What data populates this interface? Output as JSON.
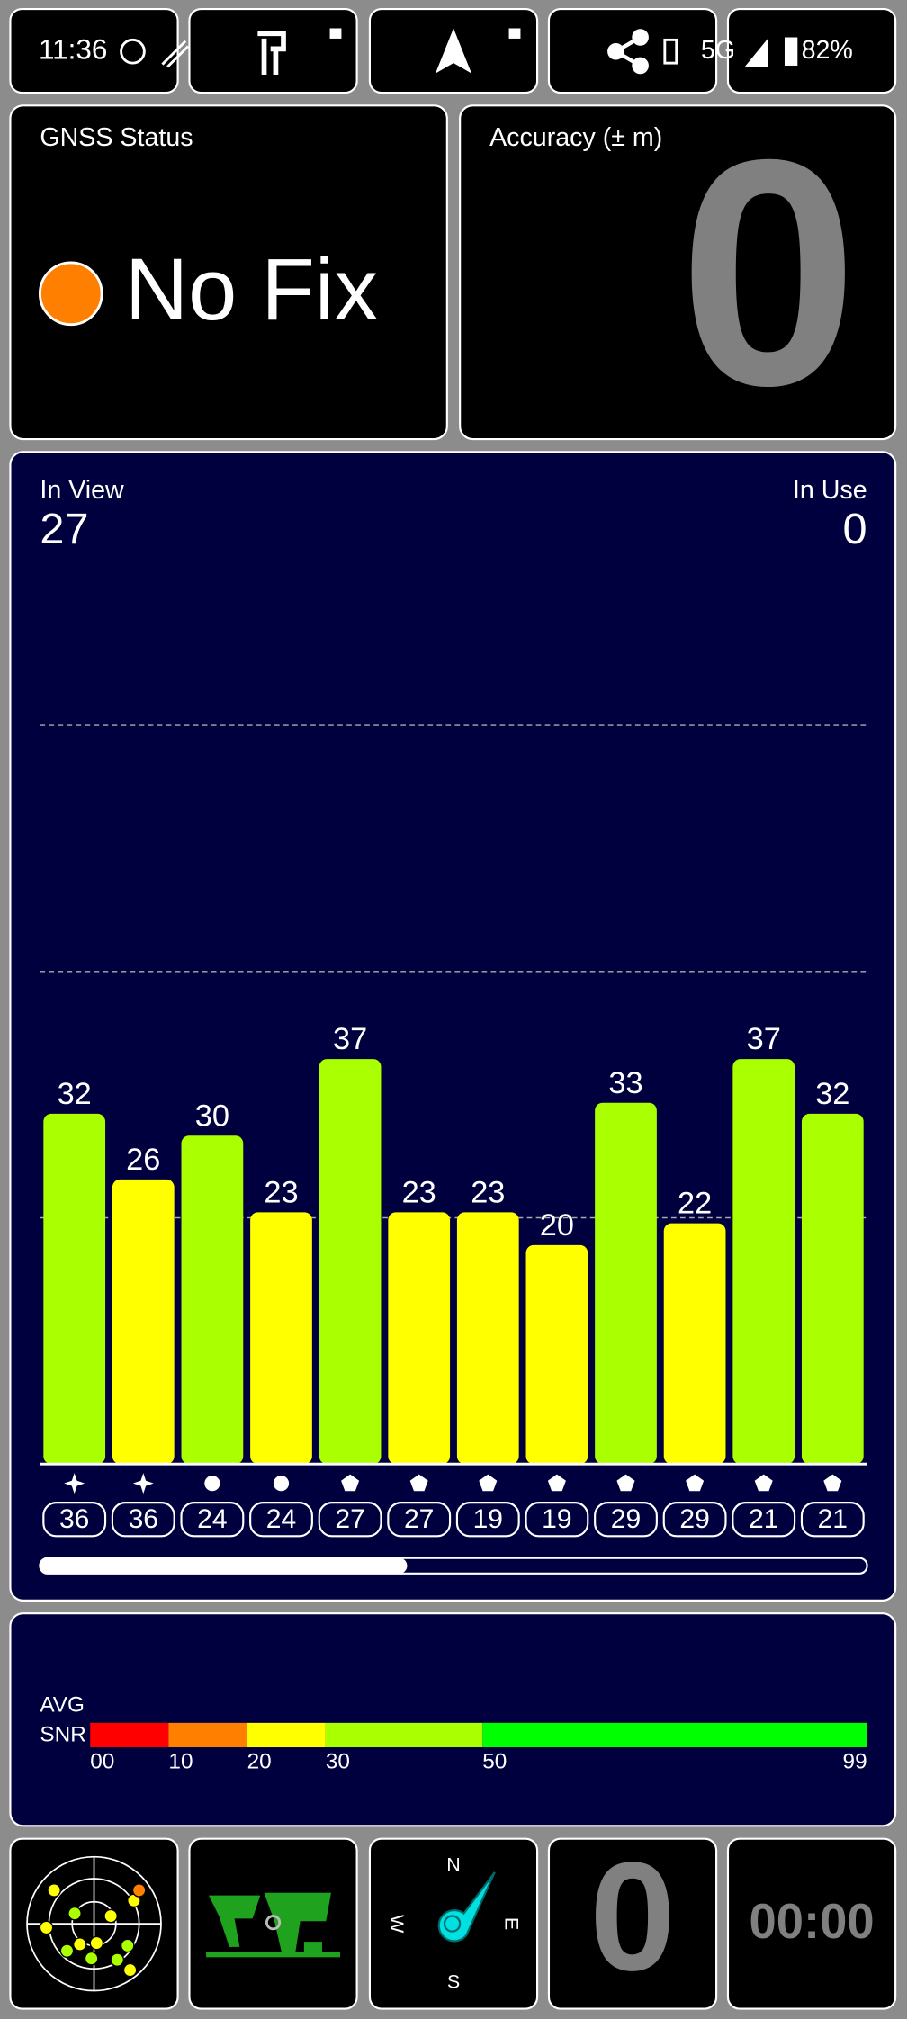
{
  "status_bar": {
    "time": "11:36",
    "network": "5G",
    "battery": "82%"
  },
  "gnss_status": {
    "title": "GNSS Status",
    "fix": "No Fix"
  },
  "accuracy": {
    "title": "Accuracy (± m)",
    "value": 0
  },
  "satellites": {
    "in_view_label": "In View",
    "in_view": 27,
    "in_use_label": "In Use",
    "in_use": 0
  },
  "chart_data": {
    "type": "bar",
    "categories": [
      "36",
      "36",
      "24",
      "24",
      "27",
      "27",
      "19",
      "19",
      "29",
      "29",
      "21",
      "21"
    ],
    "values": [
      32,
      26,
      30,
      23,
      37,
      23,
      23,
      20,
      33,
      22,
      37,
      32
    ],
    "colors": [
      "#aaff00",
      "#ffff00",
      "#aaff00",
      "#ffff00",
      "#aaff00",
      "#ffff00",
      "#ffff00",
      "#ffff00",
      "#aaff00",
      "#ffff00",
      "#aaff00",
      "#aaff00"
    ],
    "ylim": [
      0,
      90
    ],
    "grid_values": [
      22.5,
      45,
      67.5
    ],
    "grid": true
  },
  "snr_legend": {
    "label_top": "AVG",
    "label_bottom": "SNR",
    "xlim": [
      0,
      99
    ],
    "ticks": [
      {
        "value": 0,
        "label": "00"
      },
      10,
      20,
      30,
      50,
      99
    ],
    "colors": [
      "#ff0000",
      "#ff8000",
      "#ffff00",
      "#aaff00",
      "#00ff00"
    ]
  },
  "bottom_bar": {
    "compass": {
      "n": "N",
      "e": "E",
      "s": "S",
      "w": "W"
    },
    "speed": 0,
    "timer": "00:00"
  }
}
